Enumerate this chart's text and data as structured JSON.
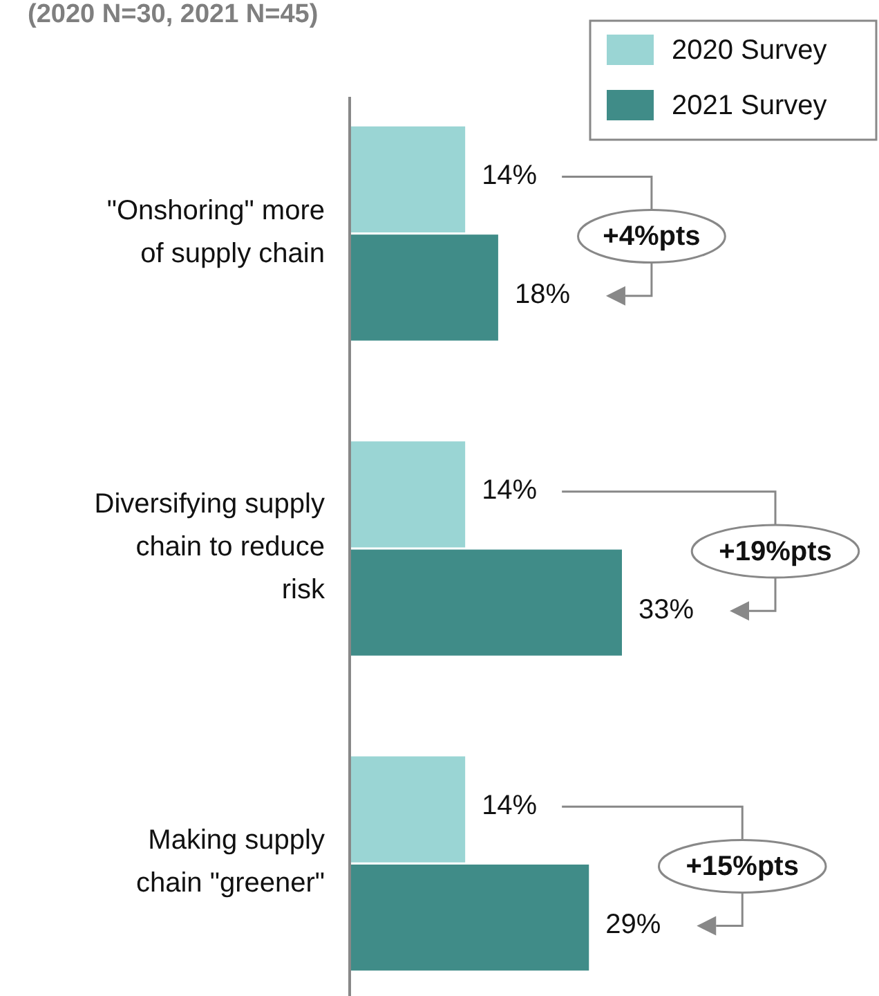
{
  "chart_data": {
    "type": "bar",
    "orientation": "horizontal",
    "subtitle": "(2020 N=30, 2021 N=45)",
    "categories": [
      "\"Onshoring\" more\nof supply chain",
      "Diversifying supply\nchain to reduce\nrisk",
      "Making supply\nchain \"greener\""
    ],
    "series": [
      {
        "name": "2020 Survey",
        "color": "#9ad5d4",
        "values": [
          14,
          14,
          14
        ],
        "value_labels": [
          "14%",
          "14%",
          "14%"
        ]
      },
      {
        "name": "2021 Survey",
        "color": "#408c88",
        "values": [
          18,
          33,
          29
        ],
        "value_labels": [
          "18%",
          "33%",
          "29%"
        ]
      }
    ],
    "legend": "top right",
    "annotations": [
      "+4%pts",
      "+19%pts",
      "+15%pts"
    ]
  }
}
